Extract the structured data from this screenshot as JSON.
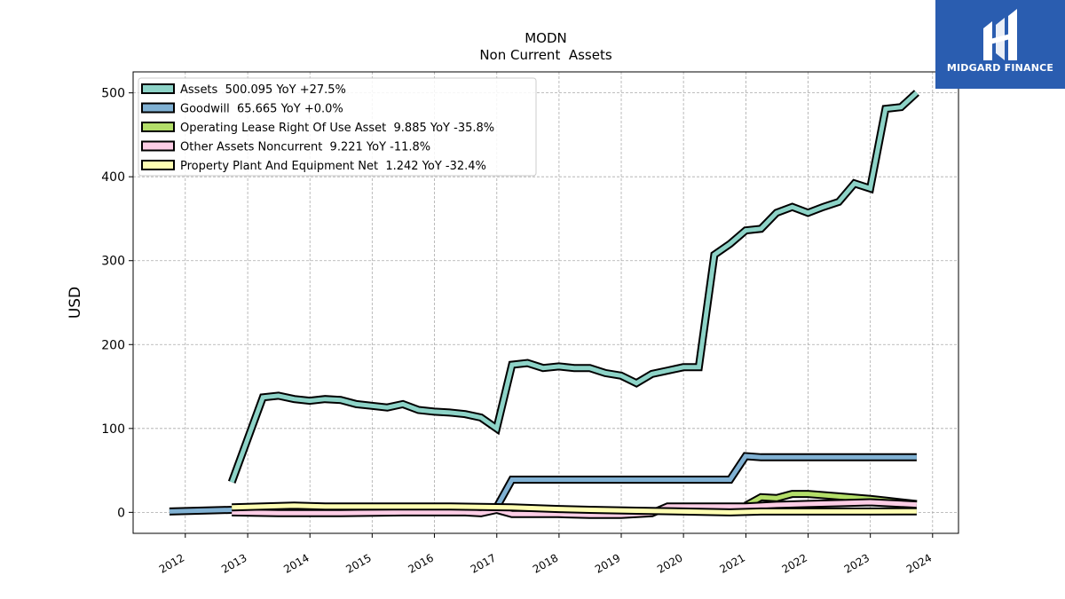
{
  "brand": {
    "name": "MIDGARD FINANCE",
    "bg_color": "#2a5db0"
  },
  "chart_data": {
    "type": "area",
    "title": "MODN",
    "subtitle": "Non Current  Assets",
    "ylabel": "USD",
    "xlabel": "",
    "xlim": [
      "2011-03-01",
      "2024-06-01"
    ],
    "ylim": [
      -25,
      525
    ],
    "yticks": [
      0,
      100,
      200,
      300,
      400,
      500
    ],
    "xticks": [
      "2012",
      "2013",
      "2014",
      "2015",
      "2016",
      "2017",
      "2018",
      "2019",
      "2020",
      "2021",
      "2022",
      "2023",
      "2024"
    ],
    "grid": true,
    "legend_position": "top-left",
    "series": [
      {
        "name": "Assets",
        "legend_label": "Assets  500.095 YoY +27.5%",
        "color": "#8dd3c7",
        "points": [
          [
            "2012-09-30",
            36
          ],
          [
            "2013-03-31",
            137
          ],
          [
            "2013-06-30",
            139
          ],
          [
            "2013-09-30",
            135
          ],
          [
            "2013-12-31",
            133
          ],
          [
            "2014-03-31",
            135
          ],
          [
            "2014-06-30",
            134
          ],
          [
            "2014-09-30",
            129
          ],
          [
            "2014-12-31",
            127
          ],
          [
            "2015-03-31",
            125
          ],
          [
            "2015-06-30",
            129
          ],
          [
            "2015-09-30",
            122
          ],
          [
            "2015-12-31",
            120
          ],
          [
            "2016-03-31",
            119
          ],
          [
            "2016-06-30",
            117
          ],
          [
            "2016-09-30",
            113
          ],
          [
            "2016-12-31",
            100
          ],
          [
            "2017-03-31",
            176
          ],
          [
            "2017-06-30",
            178
          ],
          [
            "2017-09-30",
            172
          ],
          [
            "2017-12-31",
            174
          ],
          [
            "2018-03-31",
            172
          ],
          [
            "2018-06-30",
            172
          ],
          [
            "2018-09-30",
            166
          ],
          [
            "2018-12-31",
            163
          ],
          [
            "2019-03-31",
            154
          ],
          [
            "2019-06-30",
            165
          ],
          [
            "2019-09-30",
            169
          ],
          [
            "2019-12-31",
            173
          ],
          [
            "2020-03-31",
            173
          ],
          [
            "2020-06-30",
            307
          ],
          [
            "2020-09-30",
            320
          ],
          [
            "2020-12-31",
            336
          ],
          [
            "2021-03-31",
            338
          ],
          [
            "2021-06-30",
            357
          ],
          [
            "2021-09-30",
            364
          ],
          [
            "2021-12-31",
            357
          ],
          [
            "2022-03-31",
            364
          ],
          [
            "2022-06-30",
            370
          ],
          [
            "2022-09-30",
            392
          ],
          [
            "2022-12-31",
            386
          ],
          [
            "2023-03-31",
            481
          ],
          [
            "2023-06-30",
            483
          ],
          [
            "2023-09-30",
            500.095
          ]
        ]
      },
      {
        "name": "Goodwill",
        "legend_label": "Goodwill  65.665 YoY +0.0%",
        "color": "#80b1d3",
        "points": [
          [
            "2011-09-30",
            1
          ],
          [
            "2012-09-30",
            3
          ],
          [
            "2016-12-31",
            6
          ],
          [
            "2017-03-31",
            39
          ],
          [
            "2020-09-30",
            39
          ],
          [
            "2020-12-31",
            67
          ],
          [
            "2021-03-31",
            65.665
          ],
          [
            "2023-09-30",
            65.665
          ]
        ]
      },
      {
        "name": "Operating Lease Right Of Use Asset",
        "legend_label": "Operating Lease Right Of Use Asset  9.885 YoY -35.8%",
        "color": "#b3de69",
        "points": [
          [
            "2020-12-31",
            8
          ],
          [
            "2021-03-31",
            18
          ],
          [
            "2021-06-30",
            17
          ],
          [
            "2021-09-30",
            22
          ],
          [
            "2021-12-31",
            22
          ],
          [
            "2022-06-30",
            19
          ],
          [
            "2022-12-31",
            16
          ],
          [
            "2023-03-31",
            14
          ],
          [
            "2023-09-30",
            9.885
          ]
        ]
      },
      {
        "name": "Other Assets Noncurrent",
        "legend_label": "Other Assets Noncurrent  9.221 YoY -11.8%",
        "color": "#fccde5",
        "points": [
          [
            "2012-09-30",
            0
          ],
          [
            "2013-06-30",
            -1
          ],
          [
            "2014-06-30",
            -1
          ],
          [
            "2015-06-30",
            0
          ],
          [
            "2016-06-30",
            0
          ],
          [
            "2016-09-30",
            -1
          ],
          [
            "2016-12-31",
            3
          ],
          [
            "2017-03-31",
            -2
          ],
          [
            "2017-12-31",
            -2
          ],
          [
            "2018-06-30",
            -3
          ],
          [
            "2018-12-31",
            -3
          ],
          [
            "2019-06-30",
            -1
          ],
          [
            "2019-09-30",
            7
          ],
          [
            "2020-06-30",
            7
          ],
          [
            "2020-12-31",
            7
          ],
          [
            "2021-06-30",
            9
          ],
          [
            "2021-12-31",
            10
          ],
          [
            "2022-06-30",
            11
          ],
          [
            "2022-12-31",
            12
          ],
          [
            "2023-09-30",
            9.221
          ]
        ]
      },
      {
        "name": "Property Plant And Equipment Net",
        "legend_label": "Property Plant And Equipment Net  1.242 YoY -32.4%",
        "color": "#ffffb3",
        "points": [
          [
            "2012-09-30",
            6
          ],
          [
            "2013-09-30",
            8
          ],
          [
            "2014-03-31",
            7
          ],
          [
            "2015-03-31",
            7
          ],
          [
            "2016-03-31",
            7
          ],
          [
            "2017-03-31",
            6
          ],
          [
            "2017-12-31",
            4
          ],
          [
            "2018-06-30",
            3
          ],
          [
            "2019-03-31",
            2
          ],
          [
            "2019-12-31",
            1
          ],
          [
            "2020-09-30",
            0
          ],
          [
            "2021-03-31",
            1
          ],
          [
            "2022-03-31",
            1
          ],
          [
            "2022-12-31",
            1
          ],
          [
            "2023-09-30",
            1.242
          ]
        ]
      }
    ]
  }
}
